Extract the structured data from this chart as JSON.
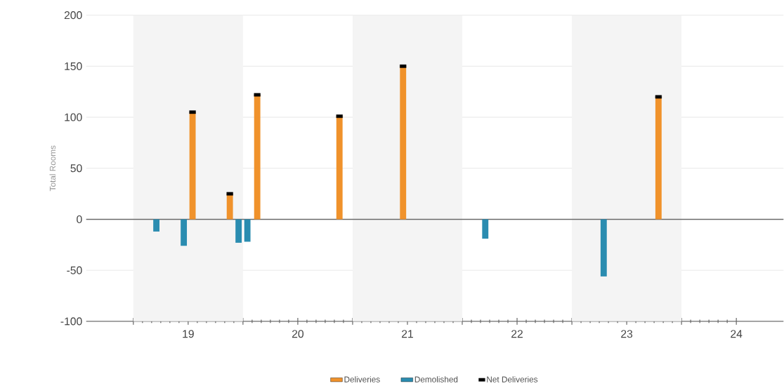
{
  "chart_data": {
    "type": "bar",
    "ylabel": "Total Rooms",
    "x": [
      19.21,
      19.46,
      19.54,
      19.88,
      19.96,
      20.04,
      20.13,
      20.88,
      21.46,
      22.21,
      23.29,
      23.79
    ],
    "series": [
      {
        "name": "Deliveries",
        "color": "#f0922b",
        "values": [
          null,
          null,
          105,
          25,
          null,
          null,
          122,
          101,
          150,
          null,
          null,
          120
        ]
      },
      {
        "name": "Demolished",
        "color": "#2a8cb0",
        "values": [
          -12,
          -26,
          null,
          null,
          -23,
          -22,
          null,
          null,
          null,
          -19,
          -56,
          null
        ]
      },
      {
        "name": "Net Deliveries",
        "type": "scatter",
        "marker": "square",
        "color": "#000000",
        "values": [
          null,
          null,
          105,
          25,
          null,
          null,
          122,
          101,
          150,
          null,
          null,
          120
        ]
      }
    ],
    "xlim": [
      18.57,
      24.93
    ],
    "xticks": [
      {
        "value": 19,
        "label": null
      },
      {
        "value": 19.5,
        "label": "19"
      },
      {
        "value": 20,
        "label": null
      },
      {
        "value": 20.5,
        "label": "20"
      },
      {
        "value": 21,
        "label": null
      },
      {
        "value": 21.5,
        "label": "21"
      },
      {
        "value": 22,
        "label": null
      },
      {
        "value": 22.5,
        "label": "22"
      },
      {
        "value": 23,
        "label": null
      },
      {
        "value": 23.5,
        "label": "23"
      },
      {
        "value": 24,
        "label": null
      },
      {
        "value": 24.5,
        "label": "24"
      }
    ],
    "ylim": [
      -100,
      200
    ],
    "yticks": [
      -100,
      -50,
      0,
      50,
      100,
      150,
      200
    ],
    "bands": [
      {
        "axis": "x",
        "from": 19,
        "to": 20,
        "color": "#f4f4f4"
      },
      {
        "axis": "x",
        "from": 21,
        "to": 22,
        "color": "#f4f4f4"
      },
      {
        "axis": "x",
        "from": 23,
        "to": 24,
        "color": "#f4f4f4"
      }
    ],
    "grid": "y",
    "legend": "bottom"
  }
}
